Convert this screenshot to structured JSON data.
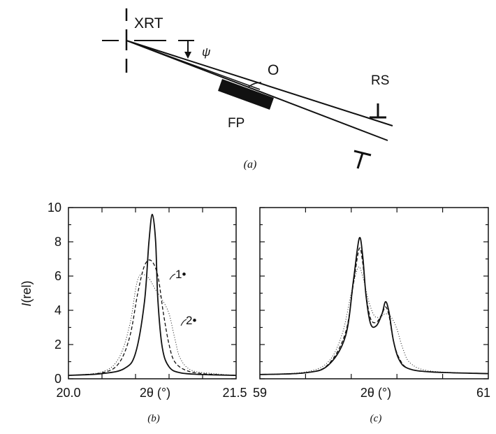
{
  "diagram": {
    "labels": {
      "xrt": "XRT",
      "psi": "ψ",
      "o": "O",
      "rs": "RS",
      "fp": "FP"
    },
    "caption": "(a)"
  },
  "chart_data": [
    {
      "type": "line",
      "caption": "(b)",
      "xlabel_symbol": "2θ",
      "xlabel_unit": " (°)",
      "ylabel_italic": "I",
      "ylabel_rest": "(rel)",
      "xlim": [
        20.0,
        21.5
      ],
      "ylim": [
        0,
        10
      ],
      "xtick_labels": [
        "20.0",
        "21.5"
      ],
      "ytick_labels": [
        "0",
        "2",
        "4",
        "6",
        "8",
        "10"
      ],
      "ytick_values": [
        0,
        2,
        4,
        6,
        8,
        10
      ],
      "annotations": [
        "1•",
        "2•"
      ],
      "series": [
        {
          "style": "solid",
          "x": [
            20.0,
            20.3,
            20.5,
            20.6,
            20.68,
            20.72,
            20.75,
            20.78,
            20.8,
            20.84,
            20.9,
            21.0,
            21.2,
            21.5
          ],
          "y": [
            0.2,
            0.3,
            0.6,
            1.5,
            4.5,
            8.0,
            9.6,
            8.0,
            4.6,
            1.8,
            0.7,
            0.35,
            0.25,
            0.2
          ]
        },
        {
          "style": "dashed",
          "x": [
            20.0,
            20.3,
            20.45,
            20.55,
            20.62,
            20.68,
            20.74,
            20.8,
            20.85,
            20.9,
            20.95,
            21.05,
            21.2,
            21.5
          ],
          "y": [
            0.2,
            0.35,
            0.9,
            2.5,
            5.0,
            6.6,
            6.9,
            6.0,
            3.8,
            2.0,
            1.0,
            0.5,
            0.3,
            0.2
          ]
        },
        {
          "style": "dotted",
          "x": [
            20.0,
            20.3,
            20.45,
            20.55,
            20.62,
            20.7,
            20.78,
            20.84,
            20.9,
            20.95,
            21.0,
            21.1,
            21.3,
            21.5
          ],
          "y": [
            0.2,
            0.4,
            1.2,
            3.2,
            5.8,
            6.0,
            5.2,
            4.6,
            3.8,
            2.4,
            1.2,
            0.5,
            0.3,
            0.2
          ]
        }
      ]
    },
    {
      "type": "line",
      "caption": "(c)",
      "xlabel_symbol": "2θ",
      "xlabel_unit": " (°)",
      "xlim": [
        59,
        61
      ],
      "ylim": [
        0,
        10
      ],
      "xtick_labels": [
        "59",
        "61"
      ],
      "series": [
        {
          "style": "solid",
          "x": [
            59.0,
            59.4,
            59.6,
            59.75,
            59.82,
            59.87,
            59.9,
            59.93,
            59.97,
            60.02,
            60.07,
            60.1,
            60.13,
            60.17,
            60.22,
            60.3,
            60.5,
            61.0
          ],
          "y": [
            0.25,
            0.35,
            0.8,
            2.5,
            5.8,
            8.2,
            7.2,
            4.8,
            3.2,
            3.1,
            3.8,
            4.5,
            3.9,
            2.2,
            1.1,
            0.6,
            0.4,
            0.3
          ]
        },
        {
          "style": "dashed",
          "x": [
            59.0,
            59.4,
            59.6,
            59.75,
            59.82,
            59.87,
            59.9,
            59.93,
            59.97,
            60.02,
            60.07,
            60.1,
            60.13,
            60.17,
            60.22,
            60.3,
            60.5,
            61.0
          ],
          "y": [
            0.25,
            0.35,
            0.85,
            2.7,
            5.6,
            7.6,
            6.8,
            4.9,
            3.5,
            3.3,
            3.8,
            4.2,
            3.7,
            2.2,
            1.2,
            0.6,
            0.4,
            0.3
          ]
        },
        {
          "style": "dotted",
          "x": [
            59.0,
            59.4,
            59.6,
            59.72,
            59.8,
            59.86,
            59.9,
            59.95,
            60.0,
            60.05,
            60.1,
            60.15,
            60.2,
            60.25,
            60.32,
            60.5,
            61.0
          ],
          "y": [
            0.25,
            0.4,
            1.0,
            2.6,
            5.0,
            6.5,
            6.0,
            4.6,
            3.7,
            3.6,
            3.8,
            3.6,
            2.9,
            1.8,
            0.9,
            0.45,
            0.3
          ]
        }
      ]
    }
  ]
}
